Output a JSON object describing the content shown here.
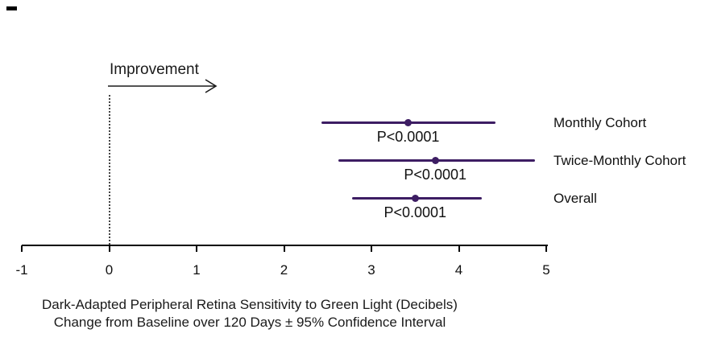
{
  "chart_data": {
    "type": "scatter",
    "subtype": "forest-plot",
    "title": "",
    "series": [
      {
        "label": "Monthly Cohort",
        "value": 3.42,
        "ci_low": 2.43,
        "ci_high": 4.42,
        "annotation": "P<0.0001"
      },
      {
        "label": "Twice-Monthly Cohort",
        "value": 3.73,
        "ci_low": 2.62,
        "ci_high": 4.87,
        "annotation": "P<0.0001"
      },
      {
        "label": "Overall",
        "value": 3.5,
        "ci_low": 2.78,
        "ci_high": 4.26,
        "annotation": "P<0.0001"
      }
    ],
    "x_axis": {
      "min": -1,
      "max": 5,
      "ticks": [
        -1,
        0,
        1,
        2,
        3,
        4,
        5
      ],
      "tick_labels": [
        "-1",
        "0",
        "1",
        "2",
        "3",
        "4",
        "5"
      ]
    },
    "reference_line_x": 0,
    "improvement_label": "Improvement",
    "xlabel_line1": "Dark-Adapted Peripheral Retina Sensitivity to Green Light (Decibels)",
    "xlabel_line2": "Change from Baseline over 120 Days ± 95% Confidence Interval",
    "legend_position": "right",
    "grid": false,
    "colors": {
      "ci": "#3d1d63",
      "axis": "#000000",
      "text": "#1a1a1a"
    }
  }
}
